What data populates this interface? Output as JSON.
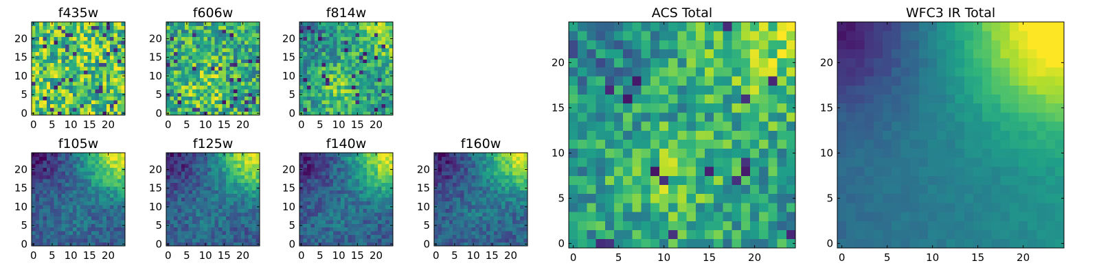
{
  "chart_data": [
    {
      "type": "heatmap",
      "title": "f435w",
      "xlabel": "",
      "ylabel": "",
      "grid_size": 25,
      "xlim": [
        0,
        24
      ],
      "ylim": [
        0,
        24
      ],
      "xticks": [
        0,
        5,
        10,
        15,
        20
      ],
      "yticks": [
        0,
        5,
        10,
        15,
        20
      ],
      "colormap": "viridis",
      "pattern": "noise"
    },
    {
      "type": "heatmap",
      "title": "f606w",
      "xlabel": "",
      "ylabel": "",
      "grid_size": 25,
      "xlim": [
        0,
        24
      ],
      "ylim": [
        0,
        24
      ],
      "xticks": [
        0,
        5,
        10,
        15,
        20
      ],
      "yticks": [
        0,
        5,
        10,
        15,
        20
      ],
      "colormap": "viridis",
      "pattern": "noise_center"
    },
    {
      "type": "heatmap",
      "title": "f814w",
      "xlabel": "",
      "ylabel": "",
      "grid_size": 25,
      "xlim": [
        0,
        24
      ],
      "ylim": [
        0,
        24
      ],
      "xticks": [
        0,
        5,
        10,
        15,
        20
      ],
      "yticks": [
        0,
        5,
        10,
        15,
        20
      ],
      "colormap": "viridis",
      "pattern": "noise_center_corner"
    },
    {
      "type": "heatmap",
      "title": "f105w",
      "xlabel": "",
      "ylabel": "",
      "grid_size": 25,
      "xlim": [
        0,
        24
      ],
      "ylim": [
        0,
        24
      ],
      "xticks": [
        0,
        5,
        10,
        15,
        20
      ],
      "yticks": [
        0,
        5,
        10,
        15,
        20
      ],
      "colormap": "viridis",
      "pattern": "corner_gradient"
    },
    {
      "type": "heatmap",
      "title": "f125w",
      "xlabel": "",
      "ylabel": "",
      "grid_size": 25,
      "xlim": [
        0,
        24
      ],
      "ylim": [
        0,
        24
      ],
      "xticks": [
        0,
        5,
        10,
        15,
        20
      ],
      "yticks": [
        0,
        5,
        10,
        15,
        20
      ],
      "colormap": "viridis",
      "pattern": "corner_gradient"
    },
    {
      "type": "heatmap",
      "title": "f140w",
      "xlabel": "",
      "ylabel": "",
      "grid_size": 25,
      "xlim": [
        0,
        24
      ],
      "ylim": [
        0,
        24
      ],
      "xticks": [
        0,
        5,
        10,
        15,
        20
      ],
      "yticks": [
        0,
        5,
        10,
        15,
        20
      ],
      "colormap": "viridis",
      "pattern": "corner_gradient"
    },
    {
      "type": "heatmap",
      "title": "f160w",
      "xlabel": "",
      "ylabel": "",
      "grid_size": 25,
      "xlim": [
        0,
        24
      ],
      "ylim": [
        0,
        24
      ],
      "xticks": [
        0,
        5,
        10,
        15,
        20
      ],
      "yticks": [
        0,
        5,
        10,
        15,
        20
      ],
      "colormap": "viridis",
      "pattern": "corner_gradient"
    },
    {
      "type": "heatmap",
      "title": "ACS Total",
      "xlabel": "",
      "ylabel": "",
      "grid_size": 25,
      "xlim": [
        0,
        24
      ],
      "ylim": [
        0,
        24
      ],
      "xticks": [
        0,
        5,
        10,
        15,
        20
      ],
      "yticks": [
        0,
        5,
        10,
        15,
        20
      ],
      "colormap": "viridis",
      "pattern": "noise_center_corner"
    },
    {
      "type": "heatmap",
      "title": "WFC3 IR Total",
      "xlabel": "",
      "ylabel": "",
      "grid_size": 25,
      "xlim": [
        0,
        24
      ],
      "ylim": [
        0,
        24
      ],
      "xticks": [
        0,
        5,
        10,
        15,
        20
      ],
      "yticks": [
        0,
        5,
        10,
        15,
        20
      ],
      "colormap": "viridis",
      "pattern": "smooth_corner"
    }
  ]
}
